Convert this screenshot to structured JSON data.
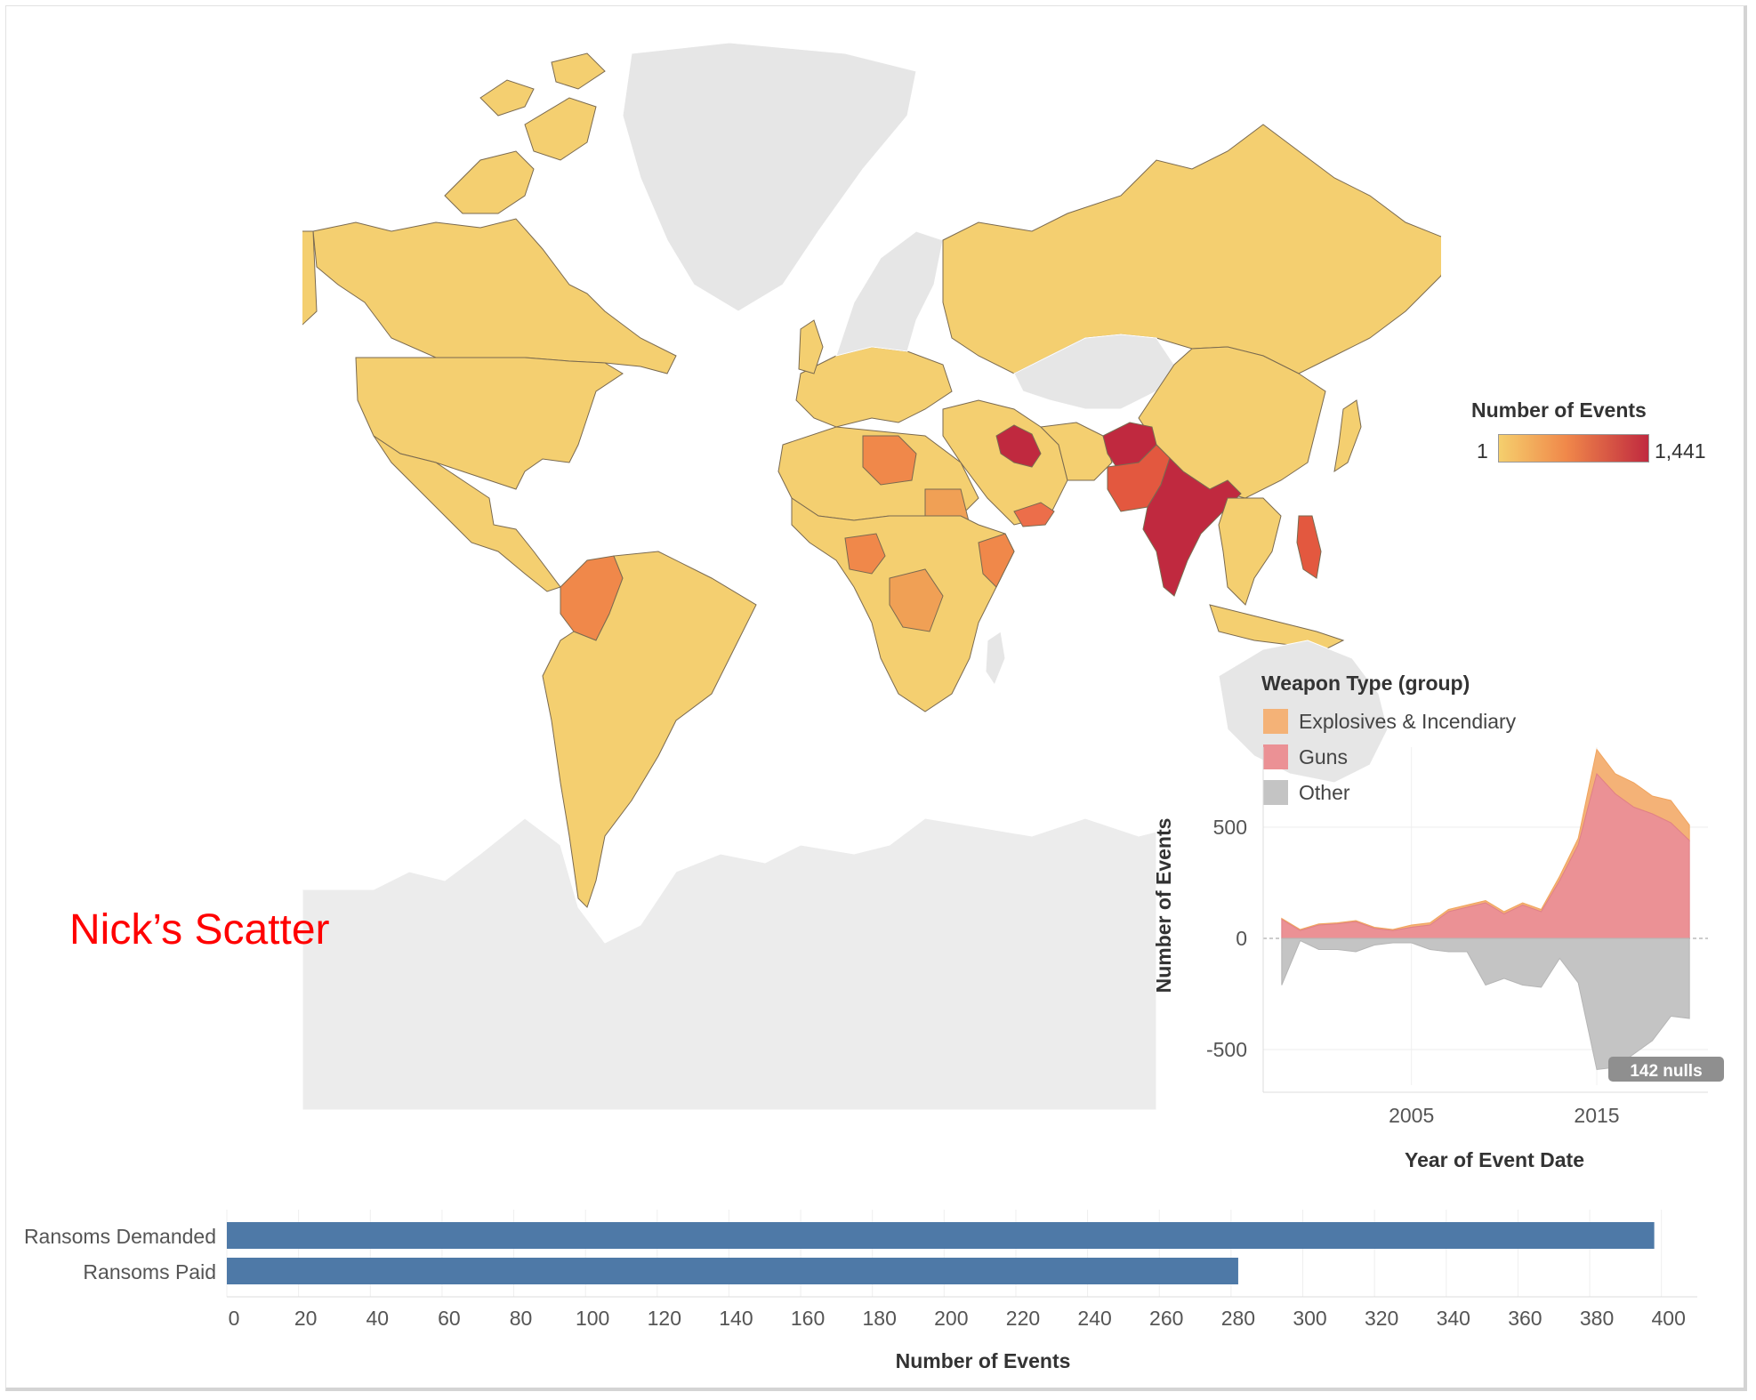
{
  "colors": {
    "low": "#f5cf6d",
    "mid": "#f0884a",
    "high": "#c0293f",
    "no_data": "#e6e6e6",
    "explosives": "#f4b277",
    "guns": "#eb9195",
    "other": "#c4c4c4",
    "bar": "#4e79a7",
    "title_red": "#ff0000"
  },
  "map": {
    "legend_title": "Number of Events",
    "legend_min": "1",
    "legend_max": "1,441"
  },
  "scatter_title": "Nick’s Scatter",
  "chart_data": [
    {
      "type": "area",
      "legend_title": "Weapon Type (group)",
      "ylabel": "Number of Events",
      "xlabel": "Year of Event Date",
      "x_ticks": [
        "2005",
        "2015"
      ],
      "y_ticks": [
        "500",
        "0",
        "-500"
      ],
      "ylim": [
        -660,
        860
      ],
      "xlim": [
        1997,
        2021
      ],
      "annotation": "142 nulls",
      "x": [
        1998,
        1999,
        2000,
        2001,
        2002,
        2003,
        2004,
        2005,
        2006,
        2007,
        2008,
        2009,
        2010,
        2011,
        2012,
        2013,
        2014,
        2015,
        2016,
        2017,
        2018,
        2019,
        2020
      ],
      "series": [
        {
          "name": "Guns",
          "values": [
            85,
            35,
            60,
            65,
            75,
            45,
            35,
            50,
            60,
            120,
            140,
            160,
            110,
            150,
            120,
            260,
            420,
            740,
            650,
            590,
            560,
            520,
            440
          ]
        },
        {
          "name": "Explosives & Incendiary",
          "values": [
            5,
            5,
            5,
            5,
            5,
            5,
            5,
            10,
            10,
            10,
            10,
            10,
            10,
            10,
            10,
            20,
            30,
            110,
            90,
            110,
            80,
            100,
            70
          ]
        },
        {
          "name": "Other",
          "values": [
            -210,
            -10,
            -50,
            -50,
            -60,
            -30,
            -20,
            -20,
            -50,
            -60,
            -60,
            -210,
            -180,
            -210,
            -220,
            -90,
            -200,
            -590,
            -580,
            -520,
            -460,
            -350,
            -360
          ]
        }
      ]
    },
    {
      "type": "bar",
      "orientation": "horizontal",
      "categories": [
        "Ransoms Demanded",
        "Ransoms Paid"
      ],
      "values": [
        398,
        282
      ],
      "xlabel": "Number of Events",
      "xlim": [
        0,
        410
      ],
      "x_ticks": [
        0,
        20,
        40,
        60,
        80,
        100,
        120,
        140,
        160,
        180,
        200,
        220,
        240,
        260,
        280,
        300,
        320,
        340,
        360,
        380,
        400
      ]
    }
  ]
}
